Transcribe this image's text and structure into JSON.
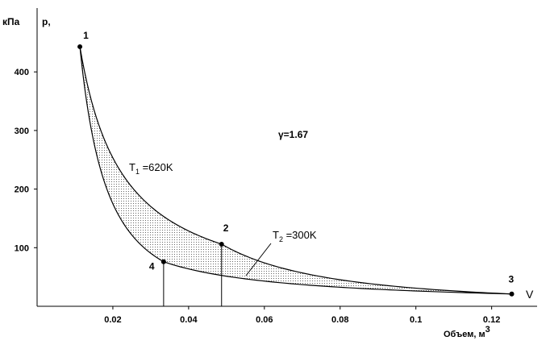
{
  "chart_data": {
    "type": "line",
    "y_unit": "кПа",
    "y_label": "p,",
    "x_letter": "V",
    "x_label": "Объем, м",
    "x_label_sup": "3",
    "annotation": "γ=1.67",
    "isotherm_labels": [
      {
        "main": "T",
        "sub": "1",
        "rest": " =620K"
      },
      {
        "main": "T",
        "sub": "2",
        "rest": " =300K"
      }
    ],
    "point_labels": [
      "1",
      "2",
      "3",
      "4"
    ],
    "x": [
      0.0113,
      0.0487,
      0.1253,
      0.0334
    ],
    "values": [
      443,
      106,
      21,
      76
    ],
    "upper_path": [
      0,
      1,
      2
    ],
    "lower_path": [
      0,
      3,
      2
    ],
    "xlim": [
      0,
      0.132
    ],
    "ylim": [
      0,
      500
    ],
    "xticks": [
      0.02,
      0.04,
      0.06,
      0.08,
      0.1,
      0.12
    ],
    "yticks": [
      100,
      200,
      300,
      400
    ]
  }
}
